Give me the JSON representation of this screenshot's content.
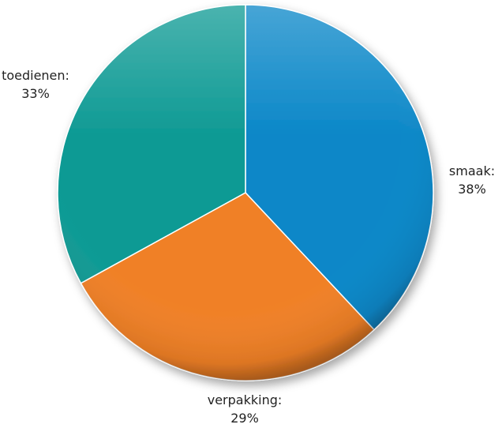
{
  "chart_data": {
    "type": "pie",
    "categories": [
      "smaak:",
      "verpakking:",
      "toedienen:"
    ],
    "values": [
      38,
      29,
      33
    ],
    "value_labels": [
      "38%",
      "29%",
      "33%"
    ],
    "colors": [
      "#0a87c8",
      "#f08026",
      "#0e9a94"
    ]
  }
}
